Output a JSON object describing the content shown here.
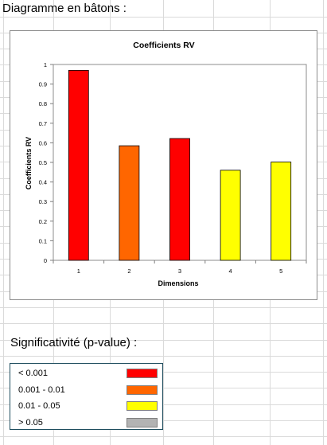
{
  "sheet": {
    "heading": "Diagramme en bâtons :",
    "significance_heading": "Significativité (p-value) :"
  },
  "chart_data": {
    "type": "bar",
    "title": "Coefficients RV",
    "xlabel": "Dimensions",
    "ylabel": "Coefficients RV",
    "categories": [
      "1",
      "2",
      "3",
      "4",
      "5"
    ],
    "values": [
      0.97,
      0.585,
      0.622,
      0.46,
      0.502
    ],
    "bar_colors": [
      "#ff0000",
      "#ff6600",
      "#ff0000",
      "#ffff00",
      "#ffff00"
    ],
    "ylim": [
      0,
      1
    ],
    "yticks": [
      "0",
      "0.1",
      "0.2",
      "0.3",
      "0.4",
      "0.5",
      "0.6",
      "0.7",
      "0.8",
      "0.9",
      "1"
    ],
    "grid": false,
    "legend": "none"
  },
  "legend": {
    "items": [
      {
        "label": "< 0.001",
        "color": "#ff0000"
      },
      {
        "label": "0.001 - 0.01",
        "color": "#ff6600"
      },
      {
        "label": "0.01 - 0.05",
        "color": "#ffff00"
      },
      {
        "label": "> 0.05",
        "color": "#b3b3b3"
      }
    ]
  },
  "colors": {
    "gridline": "#dadada",
    "bar_border": "#000000"
  }
}
